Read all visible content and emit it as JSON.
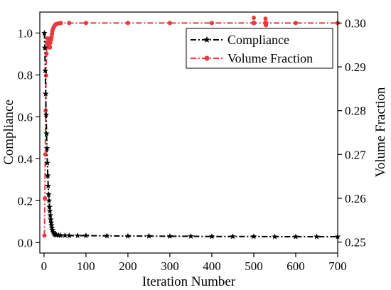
{
  "chart_data": {
    "type": "line",
    "xlabel": "Iteration Number",
    "ylabel_left": "Compliance",
    "ylabel_right": "Volume Fraction",
    "xlim": [
      -10,
      700
    ],
    "ylim_left": [
      -0.05,
      1.1
    ],
    "ylim_right": [
      0.2475,
      0.3025
    ],
    "x_ticks": [
      0,
      100,
      200,
      300,
      400,
      500,
      600,
      700
    ],
    "x_tick_labels": [
      "0",
      "100",
      "200",
      "300",
      "400",
      "500",
      "600",
      "700"
    ],
    "y_left_ticks": [
      0.0,
      0.2,
      0.4,
      0.6,
      0.8,
      1.0
    ],
    "y_left_tick_labels": [
      "0.0",
      "0.2",
      "0.4",
      "0.6",
      "0.8",
      "1.0"
    ],
    "y_right_ticks": [
      0.25,
      0.26,
      0.27,
      0.28,
      0.29,
      0.3
    ],
    "y_right_tick_labels": [
      "0.25",
      "0.26",
      "0.27",
      "0.28",
      "0.29",
      "0.30"
    ],
    "legend_position": "top-right",
    "series": [
      {
        "name": "Compliance",
        "axis": "left",
        "color": "#000000",
        "line_style": "dash-dot",
        "marker": "star",
        "points": [
          [
            1,
            1.0
          ],
          [
            2,
            0.93
          ],
          [
            3,
            0.82
          ],
          [
            4,
            0.71
          ],
          [
            5,
            0.61
          ],
          [
            6,
            0.52
          ],
          [
            7,
            0.45
          ],
          [
            8,
            0.38
          ],
          [
            9,
            0.32
          ],
          [
            10,
            0.27
          ],
          [
            11,
            0.23
          ],
          [
            12,
            0.2
          ],
          [
            13,
            0.17
          ],
          [
            14,
            0.15
          ],
          [
            15,
            0.13
          ],
          [
            16,
            0.11
          ],
          [
            17,
            0.095
          ],
          [
            18,
            0.082
          ],
          [
            19,
            0.07
          ],
          [
            20,
            0.06
          ],
          [
            22,
            0.05
          ],
          [
            24,
            0.043
          ],
          [
            26,
            0.039
          ],
          [
            28,
            0.037
          ],
          [
            30,
            0.036
          ],
          [
            35,
            0.035
          ],
          [
            40,
            0.034
          ],
          [
            50,
            0.034
          ],
          [
            60,
            0.033
          ],
          [
            80,
            0.033
          ],
          [
            100,
            0.033
          ],
          [
            150,
            0.032
          ],
          [
            200,
            0.031
          ],
          [
            250,
            0.031
          ],
          [
            300,
            0.03
          ],
          [
            350,
            0.03
          ],
          [
            400,
            0.029
          ],
          [
            450,
            0.029
          ],
          [
            500,
            0.029
          ],
          [
            550,
            0.028
          ],
          [
            600,
            0.028
          ],
          [
            650,
            0.028
          ],
          [
            700,
            0.028
          ]
        ]
      },
      {
        "name": "Volume Fraction",
        "axis": "right",
        "color": "#e8393f",
        "line_style": "dash-dot",
        "marker": "circle",
        "points": [
          [
            1,
            0.2515
          ],
          [
            2,
            0.26
          ],
          [
            3,
            0.27
          ],
          [
            4,
            0.28
          ],
          [
            5,
            0.288
          ],
          [
            6,
            0.293
          ],
          [
            7,
            0.2955
          ],
          [
            8,
            0.2965
          ],
          [
            9,
            0.2952
          ],
          [
            10,
            0.2945
          ],
          [
            11,
            0.2958
          ],
          [
            12,
            0.2962
          ],
          [
            13,
            0.2948
          ],
          [
            14,
            0.2944
          ],
          [
            15,
            0.2955
          ],
          [
            16,
            0.2966
          ],
          [
            17,
            0.2962
          ],
          [
            18,
            0.2968
          ],
          [
            19,
            0.2975
          ],
          [
            20,
            0.2982
          ],
          [
            22,
            0.2988
          ],
          [
            24,
            0.2992
          ],
          [
            26,
            0.2995
          ],
          [
            28,
            0.2997
          ],
          [
            30,
            0.2998
          ],
          [
            35,
            0.2999
          ],
          [
            40,
            0.3
          ],
          [
            60,
            0.3
          ],
          [
            100,
            0.3
          ],
          [
            200,
            0.3
          ],
          [
            300,
            0.3
          ],
          [
            400,
            0.3
          ],
          [
            499,
            0.3
          ],
          [
            500,
            0.3012
          ],
          [
            501,
            0.3
          ],
          [
            527,
            0.3
          ],
          [
            528,
            0.301
          ],
          [
            529,
            0.2995
          ],
          [
            530,
            0.3
          ],
          [
            600,
            0.3
          ],
          [
            700,
            0.3
          ]
        ]
      }
    ]
  }
}
